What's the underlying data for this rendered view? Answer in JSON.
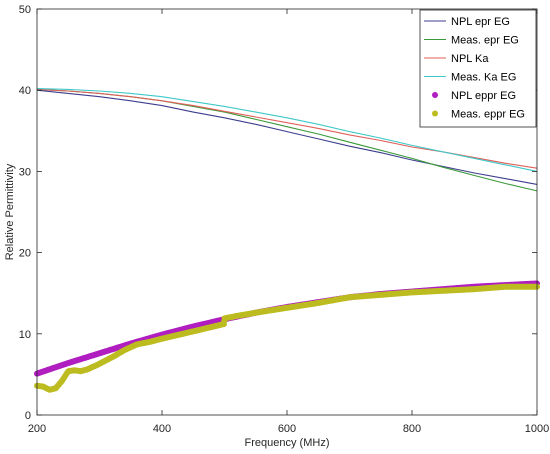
{
  "chart_data": {
    "type": "line",
    "title": "",
    "xlabel": "Frequency (MHz)",
    "ylabel": "Relative Permittivity",
    "xlim": [
      200,
      1000
    ],
    "ylim": [
      0,
      50
    ],
    "xticks": [
      200,
      400,
      600,
      800,
      1000
    ],
    "yticks": [
      0,
      10,
      20,
      30,
      40,
      50
    ],
    "grid": false,
    "legend_position": "top-right",
    "series": [
      {
        "name": "NPL epr EG",
        "style": "line",
        "color": "#3d3d8f",
        "x": [
          200,
          250,
          300,
          350,
          400,
          450,
          500,
          550,
          600,
          650,
          700,
          750,
          800,
          850,
          900,
          950,
          1000
        ],
        "y": [
          40.0,
          39.6,
          39.2,
          38.7,
          38.1,
          37.3,
          36.6,
          35.8,
          34.9,
          34.0,
          33.1,
          32.3,
          31.4,
          30.6,
          29.8,
          29.1,
          28.4
        ]
      },
      {
        "name": "Meas. epr EG",
        "style": "line",
        "color": "#3a9a3a",
        "x": [
          200,
          250,
          300,
          350,
          400,
          450,
          500,
          550,
          600,
          650,
          700,
          750,
          800,
          850,
          900,
          950,
          1000
        ],
        "y": [
          40.1,
          39.9,
          39.6,
          39.2,
          38.7,
          38.0,
          37.3,
          36.4,
          35.5,
          34.6,
          33.6,
          32.6,
          31.6,
          30.5,
          29.5,
          28.5,
          27.6
        ]
      },
      {
        "name": "NPL Ka",
        "style": "line",
        "color": "#e0605a",
        "x": [
          200,
          250,
          300,
          350,
          400,
          450,
          500,
          550,
          600,
          650,
          700,
          750,
          800,
          850,
          900,
          950,
          1000
        ],
        "y": [
          40.1,
          39.9,
          39.6,
          39.2,
          38.7,
          38.1,
          37.4,
          36.7,
          36.0,
          35.3,
          34.5,
          33.8,
          33.0,
          32.4,
          31.7,
          31.0,
          30.4
        ]
      },
      {
        "name": "Meas. Ka EG",
        "style": "line",
        "color": "#40c8c8",
        "x": [
          200,
          250,
          300,
          350,
          400,
          450,
          500,
          550,
          600,
          650,
          700,
          750,
          800,
          850,
          900,
          950,
          1000
        ],
        "y": [
          40.2,
          40.1,
          39.9,
          39.6,
          39.2,
          38.6,
          38.0,
          37.3,
          36.6,
          35.8,
          34.9,
          34.1,
          33.2,
          32.4,
          31.6,
          30.8,
          30.0
        ]
      },
      {
        "name": "NPL eppr EG",
        "style": "markers",
        "color": "#b01ec0",
        "x": [
          200,
          250,
          300,
          350,
          400,
          450,
          500,
          550,
          600,
          650,
          700,
          750,
          800,
          850,
          900,
          950,
          1000
        ],
        "y": [
          5.1,
          6.4,
          7.6,
          8.8,
          9.9,
          10.9,
          11.8,
          12.6,
          13.3,
          13.9,
          14.5,
          14.9,
          15.2,
          15.5,
          15.8,
          16.0,
          16.2
        ]
      },
      {
        "name": "Meas. eppr EG",
        "style": "markers",
        "color": "#bcbc20",
        "x": [
          200,
          210,
          220,
          230,
          240,
          250,
          260,
          270,
          280,
          300,
          320,
          340,
          360,
          380,
          400,
          450,
          499,
          500,
          520,
          550,
          600,
          650,
          700,
          750,
          800,
          850,
          900,
          950,
          1000
        ],
        "y": [
          3.6,
          3.5,
          3.1,
          3.3,
          4.2,
          5.4,
          5.5,
          5.4,
          5.6,
          6.3,
          7.1,
          8.0,
          8.7,
          9.0,
          9.4,
          10.3,
          11.2,
          11.9,
          12.2,
          12.6,
          13.2,
          13.8,
          14.5,
          14.8,
          15.1,
          15.3,
          15.5,
          15.8,
          15.8
        ]
      }
    ]
  }
}
